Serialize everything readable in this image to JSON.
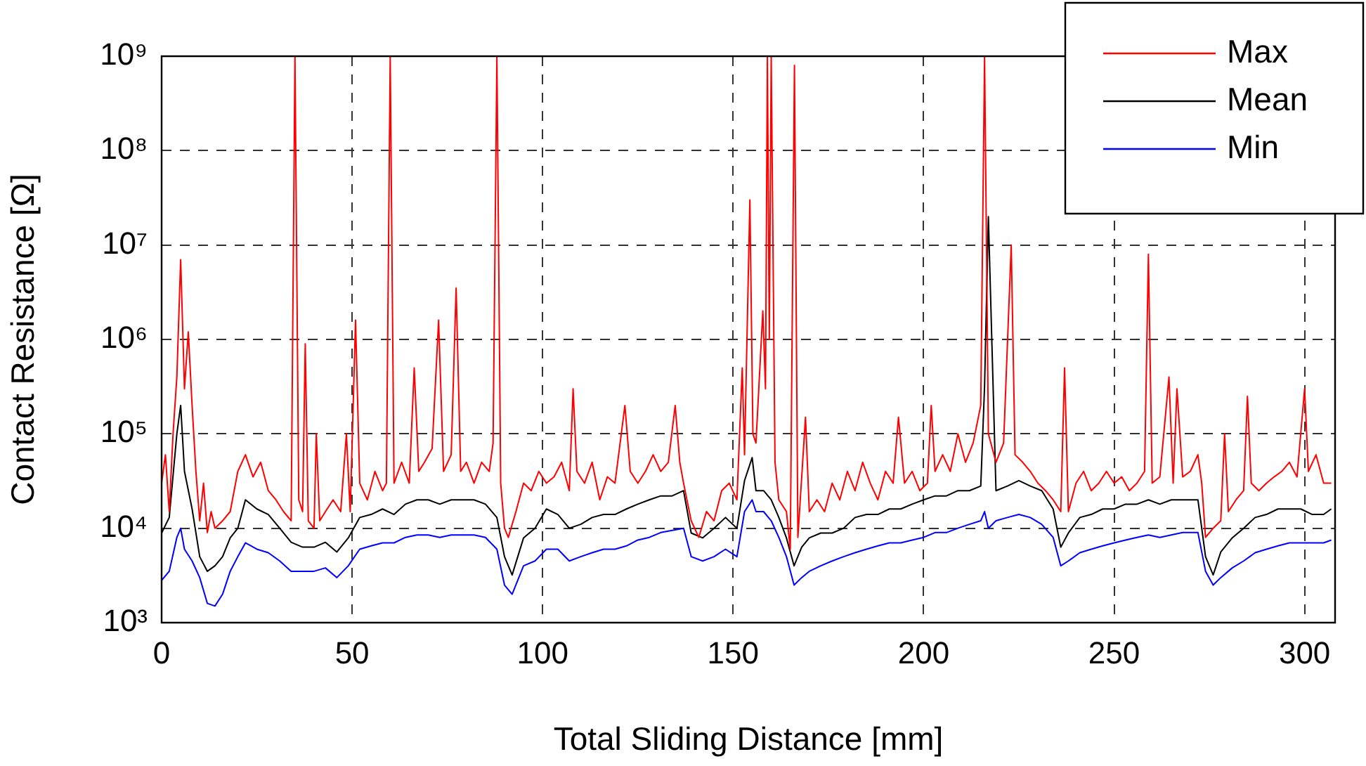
{
  "chart_data": {
    "type": "line",
    "xlabel": "Total Sliding Distance [mm]",
    "ylabel": "Contact Resistance [Ω]",
    "xlim": [
      0,
      308
    ],
    "xticks": [
      0,
      50,
      100,
      150,
      200,
      250,
      300
    ],
    "ylim": [
      1000,
      1000000000
    ],
    "yticks": [
      {
        "value": 1000,
        "label": "10³"
      },
      {
        "value": 10000,
        "label": "10⁴"
      },
      {
        "value": 100000,
        "label": "10⁵"
      },
      {
        "value": 1000000,
        "label": "10⁶"
      },
      {
        "value": 10000000,
        "label": "10⁷"
      },
      {
        "value": 100000000,
        "label": "10⁸"
      },
      {
        "value": 1000000000,
        "label": "10⁹"
      }
    ],
    "log": "y",
    "grid": true,
    "legend": "top right",
    "marker": "none",
    "line_style": "solid",
    "series": [
      {
        "name": "Max",
        "color": "#ff0000",
        "x": [
          0,
          1,
          2,
          3,
          4,
          5,
          6,
          7,
          8,
          9,
          10,
          11,
          12,
          13,
          14,
          16,
          18,
          20,
          22,
          24,
          26,
          28,
          30,
          32,
          34,
          35,
          36,
          37,
          37.7,
          38.5,
          40,
          40.6,
          41.5,
          43,
          45,
          47,
          48.5,
          49.5,
          50.9,
          52,
          54,
          56,
          58,
          59,
          60,
          61,
          63,
          65,
          66.3,
          67.5,
          69,
          71,
          72.7,
          74,
          76,
          77.3,
          78.5,
          80,
          82,
          84,
          86,
          87,
          88,
          89,
          90,
          91,
          93,
          95,
          97,
          99,
          101,
          103,
          105,
          107,
          108,
          109,
          111,
          113,
          115,
          117,
          119,
          121.6,
          123,
          125,
          127,
          129,
          131,
          133,
          134.8,
          136,
          137,
          139,
          141,
          143,
          145,
          147,
          149,
          151,
          152.4,
          153,
          154.4,
          155.2,
          156,
          157.8,
          158.5,
          159,
          159.5,
          160,
          161,
          162,
          164,
          165,
          166.1,
          167,
          169,
          170,
          172,
          174,
          176,
          178,
          180,
          182,
          184,
          186,
          188,
          190,
          192,
          193.4,
          195,
          197,
          199,
          201,
          202,
          203,
          205,
          207,
          209,
          211,
          213,
          215,
          216,
          217,
          219,
          221,
          223,
          224,
          226,
          228,
          230,
          232,
          234,
          236,
          237,
          238,
          240,
          242,
          244,
          246,
          248,
          250,
          252,
          254,
          256,
          258,
          259,
          260,
          262,
          264.4,
          265.5,
          266.5,
          268,
          270,
          272,
          273,
          274,
          276,
          278,
          279,
          280,
          282,
          284,
          285,
          286,
          288,
          290,
          292,
          294,
          296,
          298,
          300,
          301,
          303,
          305,
          307
        ],
        "values": [
          30000,
          60000,
          15000,
          100000,
          400000,
          7000000,
          300000,
          1200000,
          200000,
          40000,
          12000,
          30000,
          9000,
          15000,
          10000,
          12000,
          15000,
          40000,
          60000,
          35000,
          50000,
          25000,
          20000,
          15000,
          12000,
          1000000000,
          20000,
          15000,
          900000,
          12000,
          10000,
          100000,
          12000,
          15000,
          20000,
          15000,
          100000,
          15000,
          1600000,
          30000,
          20000,
          40000,
          25000,
          30000,
          1000000000,
          30000,
          50000,
          30000,
          500000,
          40000,
          50000,
          70000,
          1600000,
          40000,
          60000,
          3500000,
          40000,
          50000,
          30000,
          50000,
          40000,
          80000,
          1000000000,
          30000,
          10000,
          8000,
          15000,
          30000,
          25000,
          40000,
          30000,
          35000,
          50000,
          25000,
          300000,
          40000,
          30000,
          50000,
          20000,
          35000,
          30000,
          200000,
          40000,
          30000,
          40000,
          60000,
          40000,
          50000,
          200000,
          50000,
          30000,
          12000,
          8000,
          15000,
          12000,
          25000,
          30000,
          20000,
          500000,
          60000,
          30000000,
          100000,
          80000,
          2000000,
          300000,
          1000000000,
          1000000,
          1000000000,
          50000,
          20000,
          15000,
          6000,
          800000000,
          8000,
          150000,
          15000,
          20000,
          15000,
          30000,
          20000,
          40000,
          25000,
          50000,
          30000,
          20000,
          40000,
          30000,
          150000,
          30000,
          40000,
          25000,
          30000,
          200000,
          40000,
          60000,
          40000,
          100000,
          50000,
          80000,
          200000,
          1000000000,
          100000,
          50000,
          80000,
          10000000,
          60000,
          50000,
          40000,
          30000,
          25000,
          20000,
          15000,
          500000,
          15000,
          30000,
          40000,
          25000,
          30000,
          40000,
          30000,
          35000,
          25000,
          30000,
          40000,
          8000000,
          30000,
          35000,
          400000,
          30000,
          300000,
          35000,
          40000,
          60000,
          30000,
          8000,
          10000,
          12000,
          100000,
          15000,
          20000,
          25000,
          250000,
          30000,
          25000,
          30000,
          35000,
          40000,
          50000,
          35000,
          300000,
          40000,
          60000,
          30000,
          30000
        ]
      },
      {
        "name": "Mean",
        "color": "#000000",
        "x": [
          0,
          2,
          4,
          5,
          6,
          8,
          10,
          12,
          14,
          16,
          18,
          20,
          22,
          25,
          28,
          31,
          34,
          37,
          40,
          43,
          46,
          49,
          52,
          55,
          58,
          61,
          64,
          67,
          70,
          73,
          76,
          79,
          82,
          85,
          88,
          90,
          92,
          95,
          98,
          101,
          104,
          107,
          110,
          113,
          116,
          119,
          122,
          125,
          128,
          131,
          134,
          137,
          139,
          142,
          145,
          148,
          151,
          153,
          155,
          156,
          158,
          160,
          162,
          164,
          166,
          168,
          170,
          173,
          176,
          179,
          182,
          185,
          188,
          191,
          194,
          197,
          200,
          203,
          206,
          209,
          212,
          215,
          216,
          217,
          219,
          222,
          225,
          228,
          231,
          234,
          236,
          238,
          241,
          244,
          247,
          250,
          253,
          256,
          259,
          262,
          265,
          268,
          272,
          274,
          276,
          278,
          281,
          284,
          287,
          290,
          293,
          296,
          299,
          302,
          305,
          307
        ],
        "values": [
          8900,
          13000,
          100000,
          200000,
          40000,
          16000,
          5000,
          3500,
          4000,
          5000,
          7900,
          10000,
          20000,
          16000,
          14000,
          10000,
          7100,
          6300,
          6300,
          7100,
          5600,
          7900,
          13000,
          14000,
          16000,
          14000,
          18000,
          20000,
          20000,
          18000,
          20000,
          20000,
          20000,
          18000,
          13000,
          5000,
          3200,
          7900,
          10000,
          16000,
          14000,
          10000,
          11000,
          13000,
          14000,
          14000,
          16000,
          18000,
          20000,
          22000,
          22000,
          25000,
          8900,
          7900,
          10000,
          13000,
          10000,
          32000,
          56000,
          25000,
          25000,
          20000,
          13000,
          7900,
          4000,
          6300,
          7900,
          8900,
          8900,
          10000,
          13000,
          14000,
          14000,
          16000,
          16000,
          18000,
          20000,
          22000,
          22000,
          25000,
          25000,
          28000,
          320000,
          20000000,
          25000,
          28000,
          32000,
          28000,
          25000,
          16000,
          6300,
          8900,
          13000,
          14000,
          16000,
          16000,
          18000,
          18000,
          20000,
          18000,
          20000,
          20000,
          20000,
          5000,
          3200,
          5600,
          7900,
          10000,
          13000,
          14000,
          16000,
          16000,
          16000,
          14000,
          14000,
          16000
        ]
      },
      {
        "name": "Min",
        "color": "#0000ff",
        "x": [
          0,
          2,
          4,
          5,
          6,
          8,
          10,
          12,
          14,
          16,
          18,
          20,
          22,
          25,
          28,
          31,
          34,
          37,
          40,
          43,
          46,
          49,
          52,
          55,
          58,
          61,
          64,
          67,
          70,
          73,
          76,
          79,
          82,
          85,
          88,
          90,
          92,
          95,
          98,
          101,
          104,
          107,
          110,
          113,
          116,
          119,
          122,
          125,
          128,
          131,
          134,
          137,
          139,
          142,
          145,
          148,
          151,
          153,
          155,
          156,
          158,
          160,
          162,
          164,
          166,
          168,
          170,
          173,
          176,
          179,
          182,
          185,
          188,
          191,
          194,
          197,
          200,
          203,
          206,
          209,
          212,
          215,
          216,
          217,
          219,
          222,
          225,
          228,
          231,
          234,
          236,
          238,
          241,
          244,
          247,
          250,
          253,
          256,
          259,
          262,
          265,
          268,
          272,
          274,
          276,
          278,
          281,
          284,
          287,
          290,
          293,
          296,
          299,
          302,
          305,
          307
        ],
        "values": [
          2800,
          3500,
          8000,
          10000,
          6000,
          4500,
          3000,
          1600,
          1500,
          2000,
          3500,
          5000,
          7000,
          6000,
          5500,
          4500,
          3500,
          3500,
          3500,
          3800,
          3000,
          4000,
          6000,
          6500,
          7000,
          7000,
          8000,
          8500,
          8500,
          8000,
          8500,
          8500,
          8500,
          8000,
          6000,
          2500,
          2000,
          4000,
          4500,
          6000,
          6000,
          4500,
          5000,
          5500,
          6000,
          6000,
          6500,
          7500,
          8000,
          9000,
          9500,
          10000,
          5000,
          4500,
          5000,
          6000,
          5000,
          15000,
          20000,
          15000,
          15000,
          12000,
          8000,
          5000,
          2500,
          3000,
          3500,
          4000,
          4500,
          5000,
          5500,
          6000,
          6500,
          7000,
          7000,
          7500,
          8000,
          9000,
          9000,
          10000,
          11000,
          12000,
          15000,
          10000,
          12000,
          13000,
          14000,
          13000,
          11000,
          8000,
          4000,
          4500,
          5500,
          6000,
          6500,
          7000,
          7500,
          8000,
          8500,
          8000,
          8500,
          9000,
          9000,
          3500,
          2500,
          3000,
          3800,
          4500,
          5500,
          6000,
          6500,
          7000,
          7000,
          7000,
          7000,
          7500
        ]
      }
    ]
  }
}
